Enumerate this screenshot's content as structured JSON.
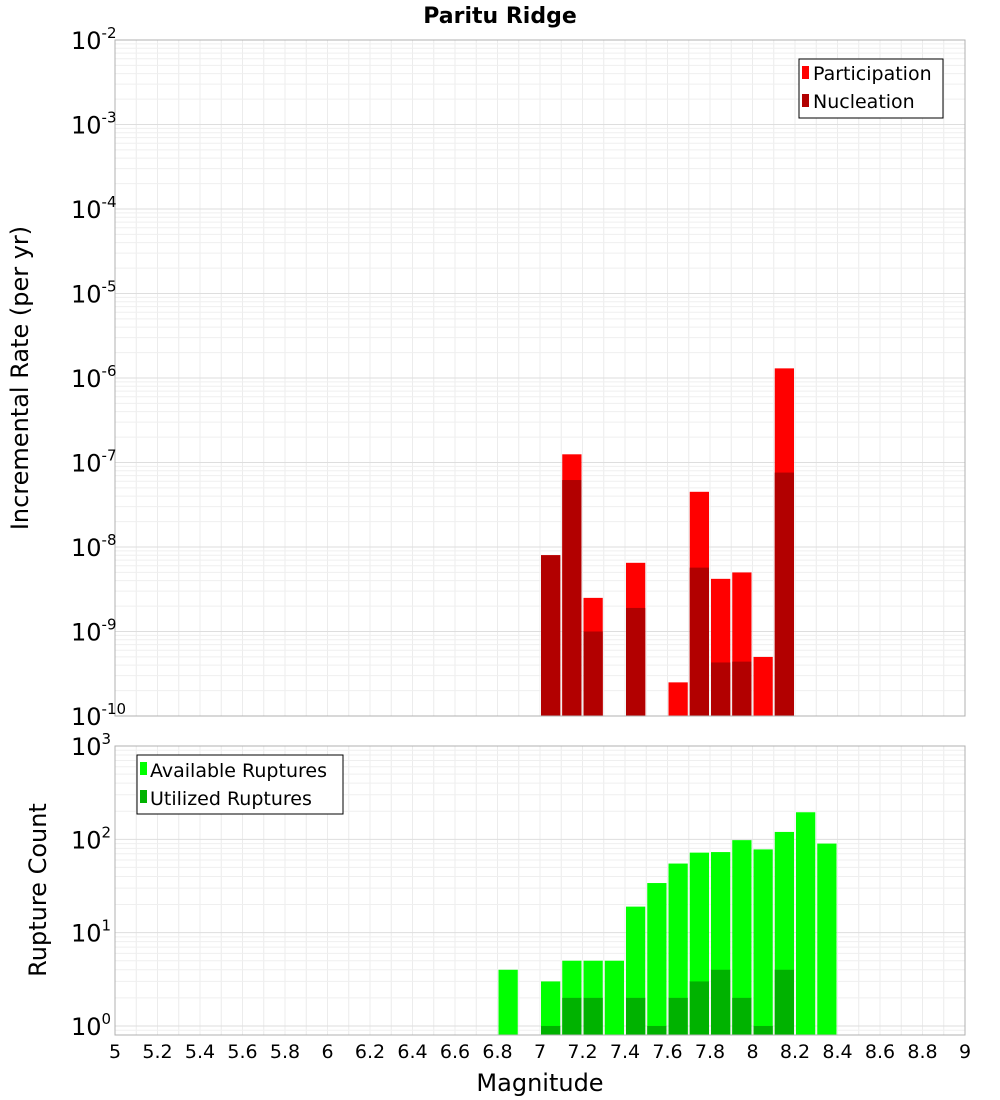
{
  "chart_data": {
    "title": "Paritu Ridge",
    "xlabel": "Magnitude",
    "xlim": [
      5,
      9
    ],
    "xticks": [
      "5",
      "5.2",
      "5.4",
      "5.6",
      "5.8",
      "6",
      "6.2",
      "6.4",
      "6.6",
      "6.8",
      "7",
      "7.2",
      "7.4",
      "7.6",
      "7.8",
      "8",
      "8.2",
      "8.4",
      "8.6",
      "8.8",
      "9"
    ],
    "grid": true,
    "panels": [
      {
        "type": "bar",
        "ylabel": "Incremental Rate (per yr)",
        "yscale": "log",
        "ylim": [
          1e-10,
          0.01
        ],
        "yticks": [
          {
            "base": "10",
            "exp": "-2"
          },
          {
            "base": "10",
            "exp": "-3"
          },
          {
            "base": "10",
            "exp": "-4"
          },
          {
            "base": "10",
            "exp": "-5"
          },
          {
            "base": "10",
            "exp": "-6"
          },
          {
            "base": "10",
            "exp": "-7"
          },
          {
            "base": "10",
            "exp": "-8"
          },
          {
            "base": "10",
            "exp": "-9"
          },
          {
            "base": "10",
            "exp": "-10"
          }
        ],
        "legend_position": "top-right",
        "series": [
          {
            "name": "Participation",
            "color": "#ff0000",
            "x": [
              7.05,
              7.15,
              7.25,
              7.45,
              7.65,
              7.75,
              7.85,
              7.95,
              8.05,
              8.15
            ],
            "values": [
              8e-09,
              1.25e-07,
              2.5e-09,
              6.5e-09,
              2.5e-10,
              4.5e-08,
              4.2e-09,
              5e-09,
              5e-10,
              1.3e-06
            ]
          },
          {
            "name": "Nucleation",
            "color": "#b20000",
            "x": [
              7.05,
              7.15,
              7.25,
              7.45,
              7.75,
              7.85,
              7.95,
              8.15
            ],
            "values": [
              8e-09,
              6.2e-08,
              1e-09,
              1.9e-09,
              5.7e-09,
              4.3e-10,
              4.4e-10,
              7.6e-08
            ]
          }
        ]
      },
      {
        "type": "bar",
        "ylabel": "Rupture Count",
        "yscale": "log",
        "ylim": [
          0.8,
          1000
        ],
        "yticks": [
          {
            "base": "10",
            "exp": "3"
          },
          {
            "base": "10",
            "exp": "2"
          },
          {
            "base": "10",
            "exp": "1"
          },
          {
            "base": "10",
            "exp": "0"
          }
        ],
        "legend_position": "top-left",
        "series": [
          {
            "name": "Available Ruptures",
            "color": "#00ff00",
            "x": [
              6.85,
              7.05,
              7.15,
              7.25,
              7.35,
              7.45,
              7.55,
              7.65,
              7.75,
              7.85,
              7.95,
              8.05,
              8.15,
              8.25,
              8.35
            ],
            "values": [
              4,
              3,
              5,
              5,
              5,
              19,
              34,
              55,
              72,
              73,
              98,
              78,
              120,
              195,
              90
            ]
          },
          {
            "name": "Utilized Ruptures",
            "color": "#00b200",
            "x": [
              7.05,
              7.15,
              7.25,
              7.45,
              7.55,
              7.65,
              7.75,
              7.85,
              7.95,
              8.05,
              8.15
            ],
            "values": [
              1,
              2,
              2,
              2,
              1,
              2,
              3,
              4,
              2,
              1,
              4
            ]
          }
        ]
      }
    ]
  }
}
